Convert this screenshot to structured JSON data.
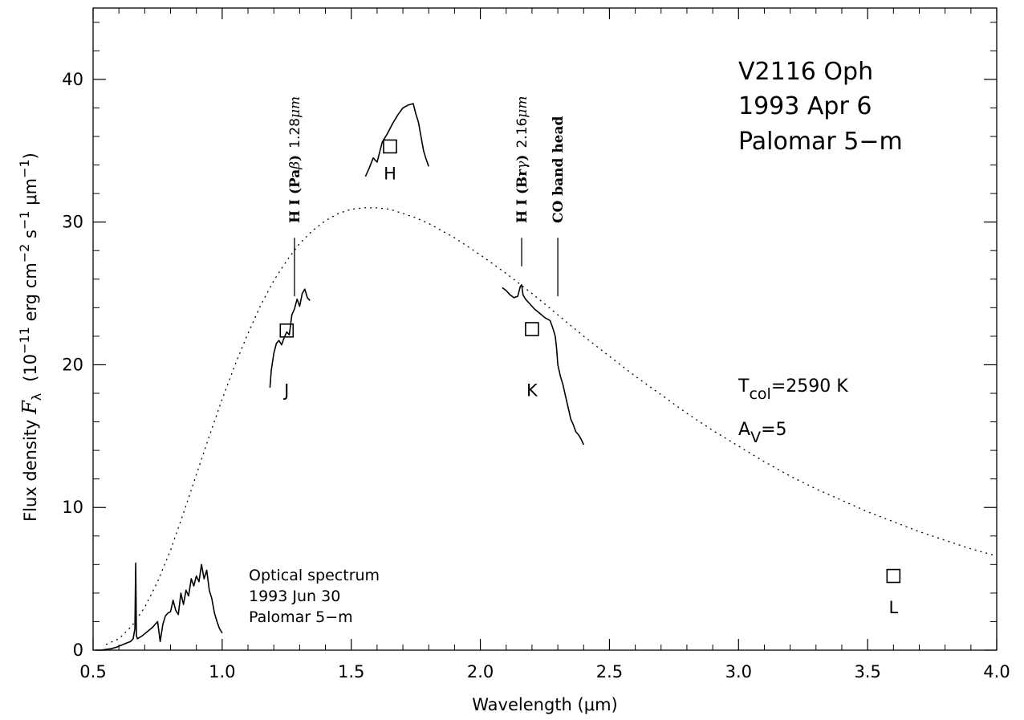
{
  "chart_data": {
    "type": "line",
    "xlabel": "Wavelength (μm)",
    "ylabel_parts": {
      "prefix": "Flux density ",
      "symbol": "F",
      "symbol_sub": "λ",
      "unit_open": "(10",
      "exp1": "−11",
      "unit_mid1": " erg cm",
      "exp2": "−2",
      "unit_mid2": " s",
      "exp3": "−1",
      "unit_mid3": " μm",
      "exp4": "−1",
      "unit_close": ")"
    },
    "xlim": [
      0.5,
      4.0
    ],
    "ylim": [
      0,
      45
    ],
    "x_ticks": [
      "0.5",
      "1.0",
      "1.5",
      "2.0",
      "2.5",
      "3.0",
      "3.5",
      "4.0"
    ],
    "y_ticks": [
      "0",
      "10",
      "20",
      "30",
      "40"
    ],
    "y_tick_values": [
      0,
      10,
      20,
      30,
      40
    ],
    "x_tick_values": [
      0.5,
      1.0,
      1.5,
      2.0,
      2.5,
      3.0,
      3.5,
      4.0
    ],
    "object_label": [
      "V2116 Oph",
      "1993 Apr 6",
      "Palomar 5−m"
    ],
    "optical_label": [
      "Optical spectrum",
      "1993 Jun 30",
      "Palomar 5−m"
    ],
    "fit_params": {
      "t_main": "T",
      "t_sub": "col",
      "t_value": "=2590 K",
      "a_main": "A",
      "a_sub": "V",
      "a_value": "=5"
    },
    "line_labels": [
      {
        "id": "pab",
        "x": 1.28,
        "bold_text": "H I (Pa",
        "greek": "β",
        "close": ")",
        "wave": "1.28",
        "unit": "μm",
        "tick_top": 28.9,
        "tick_bottom": 24.8
      },
      {
        "id": "brg",
        "x": 2.16,
        "bold_text": "H I (Br",
        "greek": "γ",
        "close": ")",
        "wave": "2.16",
        "unit": "μm",
        "tick_top": 28.9,
        "tick_bottom": 26.9
      },
      {
        "id": "co",
        "x": 2.3,
        "bold_text": "CO band head",
        "tick_top": 28.9,
        "tick_bottom": 24.8
      }
    ],
    "photometry": [
      {
        "band": "J",
        "x": 1.25,
        "y": 22.4,
        "label_y": 17.8
      },
      {
        "band": "H",
        "x": 1.65,
        "y": 35.3,
        "label_y": 33.0
      },
      {
        "band": "K",
        "x": 2.2,
        "y": 22.5,
        "label_y": 17.8
      },
      {
        "band": "L",
        "x": 3.6,
        "y": 5.2,
        "label_y": 2.6
      }
    ],
    "series": [
      {
        "style": "dotted",
        "x": [
          0.55,
          0.6,
          0.65,
          0.7,
          0.75,
          0.8,
          0.85,
          0.9,
          0.95,
          1.0,
          1.05,
          1.1,
          1.15,
          1.2,
          1.25,
          1.3,
          1.35,
          1.4,
          1.45,
          1.5,
          1.55,
          1.6,
          1.65,
          1.7,
          1.75,
          1.8,
          1.85,
          1.9,
          1.95,
          2.0,
          2.1,
          2.2,
          2.3,
          2.4,
          2.5,
          2.6,
          2.7,
          2.8,
          2.9,
          3.0,
          3.1,
          3.2,
          3.3,
          3.4,
          3.5,
          3.6,
          3.7,
          3.8,
          3.9,
          4.0
        ],
        "y": [
          0.4,
          0.8,
          1.7,
          3.0,
          4.8,
          7.0,
          9.6,
          12.3,
          15.0,
          17.6,
          20.0,
          22.2,
          24.2,
          25.9,
          27.3,
          28.5,
          29.4,
          30.1,
          30.6,
          30.9,
          31.0,
          31.0,
          30.9,
          30.6,
          30.3,
          29.9,
          29.4,
          28.9,
          28.3,
          27.7,
          26.4,
          25.0,
          23.5,
          22.0,
          20.6,
          19.2,
          17.9,
          16.6,
          15.4,
          14.3,
          13.2,
          12.2,
          11.3,
          10.5,
          9.7,
          9.0,
          8.3,
          7.7,
          7.1,
          6.6
        ]
      },
      {
        "style": "solid",
        "x": [
          0.51,
          0.53,
          0.55,
          0.57,
          0.59,
          0.61,
          0.63,
          0.645,
          0.655,
          0.662,
          0.665,
          0.668,
          0.672,
          0.69,
          0.71,
          0.73,
          0.75,
          0.76,
          0.77,
          0.78,
          0.79,
          0.8,
          0.81,
          0.82,
          0.83,
          0.84,
          0.85,
          0.86,
          0.87,
          0.88,
          0.89,
          0.9,
          0.91,
          0.92,
          0.93,
          0.94,
          0.95,
          0.96,
          0.97,
          0.98,
          0.99,
          1.0
        ],
        "y": [
          0.0,
          0.0,
          0.05,
          0.1,
          0.2,
          0.35,
          0.5,
          0.6,
          0.8,
          1.5,
          6.1,
          1.0,
          0.8,
          1.0,
          1.3,
          1.6,
          2.0,
          0.6,
          1.8,
          2.4,
          2.6,
          2.7,
          3.5,
          2.8,
          2.5,
          4.0,
          3.2,
          4.2,
          3.8,
          5.0,
          4.5,
          5.2,
          4.8,
          6.0,
          5.0,
          5.6,
          4.2,
          3.6,
          2.6,
          2.0,
          1.5,
          1.2
        ]
      },
      {
        "style": "solid",
        "x": [
          1.185,
          1.19,
          1.2,
          1.21,
          1.22,
          1.23,
          1.24,
          1.25,
          1.26,
          1.27,
          1.28,
          1.29,
          1.3,
          1.31,
          1.32,
          1.33,
          1.34
        ],
        "y": [
          18.4,
          19.6,
          20.8,
          21.5,
          21.7,
          21.4,
          21.9,
          22.3,
          22.1,
          23.5,
          23.9,
          24.6,
          24.1,
          25.0,
          25.3,
          24.7,
          24.5
        ]
      },
      {
        "style": "solid",
        "x": [
          1.555,
          1.57,
          1.585,
          1.6,
          1.62,
          1.64,
          1.66,
          1.68,
          1.7,
          1.72,
          1.74,
          1.75,
          1.76,
          1.77,
          1.78,
          1.79,
          1.8
        ],
        "y": [
          33.2,
          33.8,
          34.5,
          34.2,
          35.6,
          36.2,
          36.9,
          37.5,
          38.0,
          38.2,
          38.3,
          37.6,
          37.0,
          36.0,
          35.0,
          34.4,
          33.9
        ]
      },
      {
        "style": "solid",
        "x": [
          2.085,
          2.1,
          2.115,
          2.13,
          2.145,
          2.155,
          2.16,
          2.165,
          2.175,
          2.19,
          2.21,
          2.23,
          2.25,
          2.27,
          2.28,
          2.29,
          2.295,
          2.3,
          2.31,
          2.32,
          2.33,
          2.34,
          2.35,
          2.36,
          2.37,
          2.38,
          2.39,
          2.4
        ],
        "y": [
          25.4,
          25.2,
          24.9,
          24.7,
          24.8,
          25.5,
          25.6,
          24.9,
          24.6,
          24.3,
          23.9,
          23.6,
          23.3,
          23.1,
          22.6,
          22.0,
          21.2,
          20.0,
          19.2,
          18.6,
          17.8,
          17.0,
          16.2,
          15.8,
          15.3,
          15.1,
          14.8,
          14.4
        ]
      }
    ]
  }
}
